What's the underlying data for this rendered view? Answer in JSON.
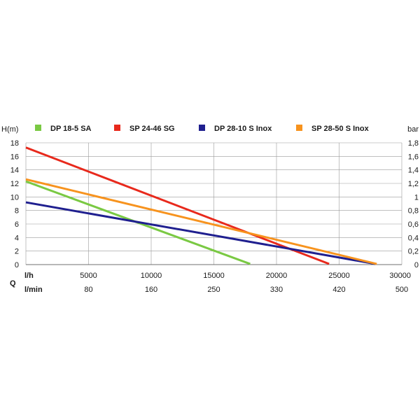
{
  "chart_data": {
    "type": "line",
    "title": "",
    "ylabel_left": "H(m)",
    "ylabel_right": "bar",
    "q_label": "Q",
    "x_unit_lh": "l/h",
    "x_unit_lmin": "l/min",
    "xlim": [
      0,
      30000
    ],
    "ylim": [
      0,
      18
    ],
    "x_ticks_lh": [
      "5000",
      "10000",
      "15000",
      "20000",
      "25000",
      "30000"
    ],
    "x_ticks_lmin": [
      "80",
      "160",
      "250",
      "330",
      "420",
      "500"
    ],
    "y_ticks_left": [
      "0",
      "2",
      "4",
      "6",
      "8",
      "10",
      "12",
      "14",
      "16",
      "18"
    ],
    "y_ticks_right": [
      "0",
      "0,2",
      "0,4",
      "0,6",
      "0,8",
      "1",
      "1,2",
      "1,4",
      "1,6",
      "1,8"
    ],
    "grid": true,
    "legend_position": "top",
    "series": [
      {
        "name": "DP 18-5 SA",
        "color": "#7ac943",
        "x": [
          0,
          17900
        ],
        "y": [
          12.3,
          0.1
        ]
      },
      {
        "name": "SP 24-46 SG",
        "color": "#e8291c",
        "x": [
          0,
          24200
        ],
        "y": [
          17.3,
          0.1
        ]
      },
      {
        "name": "DP 28-10 S Inox",
        "color": "#1f1f8f",
        "x": [
          0,
          27900
        ],
        "y": [
          9.2,
          0.1
        ]
      },
      {
        "name": "SP 28-50 S Inox",
        "color": "#f7931e",
        "x": [
          0,
          28000
        ],
        "y": [
          12.6,
          0.1
        ]
      }
    ]
  }
}
